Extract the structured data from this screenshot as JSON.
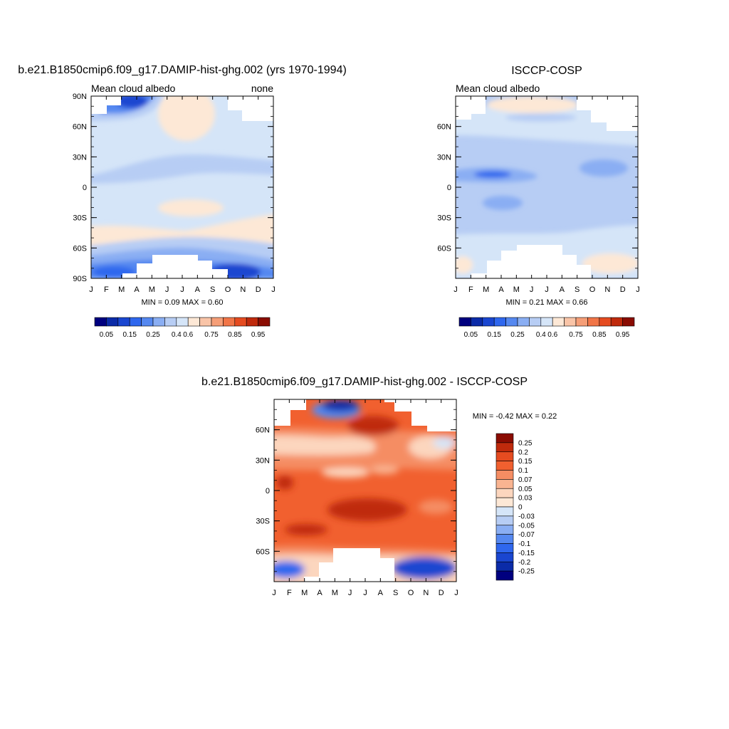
{
  "chart_data": [
    {
      "type": "heatmap",
      "title": "b.e21.B1850cmip6.f09_g17.DAMIP-hist-ghg.002 (yrs 1970-1994)",
      "left_subtitle": "Mean cloud albedo",
      "right_subtitle": "none",
      "x_ticks": [
        "J",
        "F",
        "M",
        "A",
        "M",
        "J",
        "J",
        "A",
        "S",
        "O",
        "N",
        "D",
        "J"
      ],
      "y_ticks": [
        "90N",
        "60N",
        "30N",
        "0",
        "30S",
        "60S",
        "90S"
      ],
      "xlim": [
        0,
        12
      ],
      "ylim": [
        -90,
        90
      ],
      "stats": "MIN =   0.09 MAX =   0.60",
      "colorbar_labels": [
        "0.05",
        "0.15",
        "0.25",
        "0.4",
        "0.6",
        "0.75",
        "0.85",
        "0.95"
      ]
    },
    {
      "type": "heatmap",
      "title": "ISCCP-COSP",
      "left_subtitle": "Mean cloud albedo",
      "x_ticks": [
        "J",
        "F",
        "M",
        "A",
        "M",
        "J",
        "J",
        "A",
        "S",
        "O",
        "N",
        "D",
        "J"
      ],
      "y_ticks": [
        "60N",
        "30N",
        "0",
        "30S",
        "60S"
      ],
      "xlim": [
        0,
        12
      ],
      "ylim": [
        -90,
        90
      ],
      "stats": "MIN =   0.21 MAX =   0.66",
      "colorbar_labels": [
        "0.05",
        "0.15",
        "0.25",
        "0.4",
        "0.6",
        "0.75",
        "0.85",
        "0.95"
      ]
    },
    {
      "type": "heatmap",
      "title": "b.e21.B1850cmip6.f09_g17.DAMIP-hist-ghg.002 - ISCCP-COSP",
      "x_ticks": [
        "J",
        "F",
        "M",
        "A",
        "M",
        "J",
        "J",
        "A",
        "S",
        "O",
        "N",
        "D",
        "J"
      ],
      "y_ticks": [
        "60N",
        "30N",
        "0",
        "30S",
        "60S"
      ],
      "xlim": [
        0,
        12
      ],
      "ylim": [
        -90,
        90
      ],
      "stats": "MIN =  -0.42 MAX =   0.22",
      "colorbar_labels": [
        "0.25",
        "0.2",
        "0.15",
        "0.1",
        "0.07",
        "0.05",
        "0.03",
        "0",
        "-0.03",
        "-0.05",
        "-0.07",
        "-0.1",
        "-0.15",
        "-0.2",
        "-0.25"
      ]
    }
  ],
  "colors": {
    "seq": [
      "#00007f",
      "#0b2ba8",
      "#1a46d0",
      "#2f67ee",
      "#5588f0",
      "#8aaef3",
      "#b7cdf4",
      "#d5e5f8",
      "#fde8d6",
      "#f9c4a7",
      "#f59e77",
      "#f17547",
      "#e54b20",
      "#bf2a0c",
      "#8a0c02"
    ],
    "diff": [
      "#8a0c02",
      "#bf2a0c",
      "#e54b20",
      "#f1602f",
      "#f58d63",
      "#f9b491",
      "#fcd6be",
      "#fde8d6",
      "#d5e5f8",
      "#b7cdf4",
      "#8aaef3",
      "#5588f0",
      "#2f67ee",
      "#1a46d0",
      "#0b2ba8",
      "#00007f"
    ]
  }
}
